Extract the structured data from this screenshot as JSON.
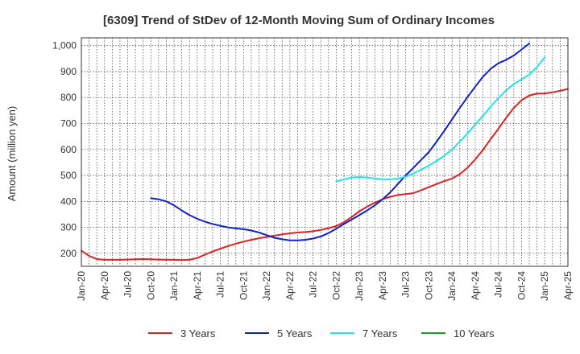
{
  "chart_data": {
    "type": "line",
    "title": "[6309]  Trend of StDev of 12-Month Moving Sum of Ordinary Incomes",
    "xlabel": "",
    "ylabel": "Amount (million yen)",
    "ylim": [
      150,
      1030
    ],
    "yticks": [
      200,
      300,
      400,
      500,
      600,
      700,
      800,
      900,
      1000
    ],
    "ytick_labels": [
      "200",
      "300",
      "400",
      "500",
      "600",
      "700",
      "800",
      "900",
      "1,000"
    ],
    "xticks": [
      "Jan-20",
      "Apr-20",
      "Jul-20",
      "Oct-20",
      "Jan-21",
      "Apr-21",
      "Jul-21",
      "Oct-21",
      "Jan-22",
      "Apr-22",
      "Jul-22",
      "Oct-22",
      "Jan-23",
      "Apr-23",
      "Jul-23",
      "Oct-23",
      "Jan-24",
      "Apr-24",
      "Jul-24",
      "Oct-24",
      "Jan-25",
      "Apr-25"
    ],
    "legend_position": "bottom",
    "grid": true,
    "series": [
      {
        "name": "3 Years",
        "color": "#dd2222",
        "start_index": 0,
        "values": [
          210,
          190,
          178,
          175,
          175,
          175,
          176,
          177,
          178,
          177,
          176,
          175,
          175,
          174,
          175,
          182,
          195,
          207,
          218,
          228,
          237,
          245,
          252,
          258,
          263,
          268,
          273,
          277,
          280,
          282,
          285,
          290,
          297,
          305,
          320,
          340,
          362,
          380,
          395,
          408,
          418,
          425,
          428,
          432,
          443,
          455,
          467,
          478,
          488,
          505,
          530,
          562,
          598,
          640,
          680,
          722,
          760,
          790,
          808,
          815,
          816,
          820,
          826,
          833
        ]
      },
      {
        "name": "5 Years",
        "color": "#1122cc",
        "start_index": 9,
        "values": [
          412,
          408,
          400,
          385,
          365,
          347,
          333,
          322,
          313,
          306,
          300,
          296,
          293,
          288,
          280,
          270,
          260,
          254,
          250,
          250,
          252,
          257,
          265,
          278,
          295,
          313,
          330,
          347,
          365,
          385,
          408,
          435,
          468,
          500,
          530,
          560,
          590,
          630,
          672,
          716,
          760,
          802,
          842,
          880,
          910,
          932,
          945,
          962,
          985,
          1008
        ]
      },
      {
        "name": "7 Years",
        "color": "#22e5e5",
        "start_index": 33,
        "values": [
          477,
          485,
          492,
          494,
          492,
          488,
          485,
          485,
          488,
          495,
          508,
          522,
          538,
          556,
          576,
          600,
          630,
          662,
          696,
          730,
          765,
          798,
          828,
          852,
          870,
          888,
          918,
          955
        ]
      },
      {
        "name": "10 Years",
        "color": "#229922",
        "start_index": 0,
        "values": []
      }
    ]
  }
}
